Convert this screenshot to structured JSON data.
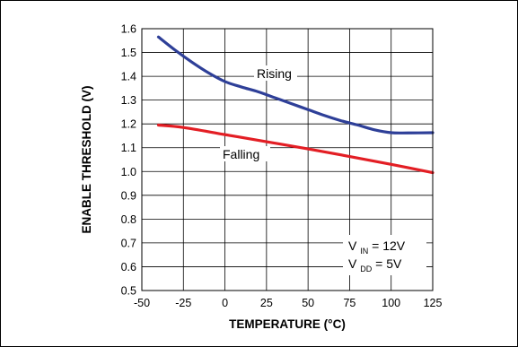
{
  "chart_data": {
    "type": "line",
    "title": "",
    "xlabel": "TEMPERATURE (°C)",
    "ylabel": "ENABLE THRESHOLD (V)",
    "xlim": [
      -50,
      125
    ],
    "ylim": [
      0.5,
      1.6
    ],
    "xticks": [
      -50,
      -25,
      0,
      25,
      50,
      75,
      100,
      125
    ],
    "xtick_labels": [
      "-50",
      "-25",
      "0",
      "25",
      "50",
      "75",
      "100",
      "125"
    ],
    "yticks": [
      0.5,
      0.6,
      0.7,
      0.8,
      0.9,
      1.0,
      1.1,
      1.2,
      1.3,
      1.4,
      1.5,
      1.6
    ],
    "ytick_labels": [
      "0.5",
      "0.6",
      "0.7",
      "0.8",
      "0.9",
      "1.0",
      "1.1",
      "1.2",
      "1.3",
      "1.4",
      "1.5",
      "1.6"
    ],
    "grid": true,
    "series": [
      {
        "name": "Rising",
        "color": "#2e3f98",
        "x": [
          -40,
          -30,
          -20,
          -10,
          0,
          10,
          20,
          30,
          40,
          50,
          60,
          70,
          80,
          90,
          100,
          110,
          125
        ],
        "y": [
          1.565,
          1.51,
          1.46,
          1.415,
          1.378,
          1.355,
          1.335,
          1.31,
          1.285,
          1.26,
          1.235,
          1.213,
          1.195,
          1.175,
          1.163,
          1.162,
          1.163
        ]
      },
      {
        "name": "Falling",
        "color": "#e31e24",
        "x": [
          -40,
          -25,
          0,
          25,
          50,
          75,
          100,
          125
        ],
        "y": [
          1.195,
          1.185,
          1.155,
          1.125,
          1.095,
          1.063,
          1.03,
          0.995
        ]
      }
    ],
    "annotations": {
      "rising_label": "Rising",
      "falling_label": "Falling",
      "vin_symbol": "V",
      "vin_subscript": "IN",
      "vin_value": " = 12V",
      "vdd_symbol": "V",
      "vdd_subscript": "DD",
      "vdd_value": " = 5V"
    }
  }
}
